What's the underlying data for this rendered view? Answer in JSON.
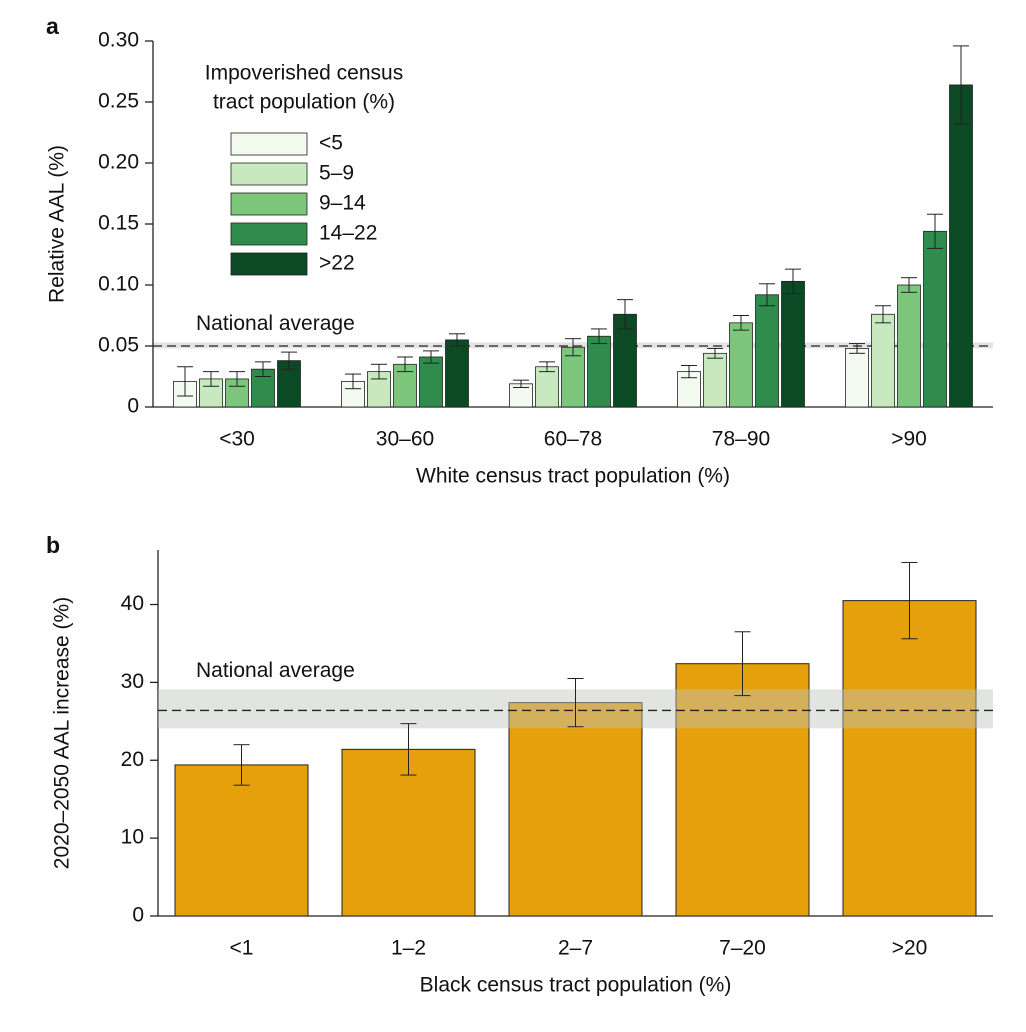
{
  "chart_data": [
    {
      "type": "grouped_bar",
      "panel": "a",
      "x_label": "White census tract population (%)",
      "y_label": "Relative AAL (%)",
      "categories": [
        "<30",
        "30–60",
        "60–78",
        "78–90",
        ">90"
      ],
      "legend_title_lines": [
        "Impoverished census",
        "tract population (%)"
      ],
      "series": [
        {
          "name": "<5",
          "color": "#f3faf0",
          "values": [
            0.021,
            0.021,
            0.019,
            0.029,
            0.048
          ],
          "errors": [
            0.012,
            0.006,
            0.003,
            0.005,
            0.004
          ]
        },
        {
          "name": "5–9",
          "color": "#c8e9c0",
          "values": [
            0.023,
            0.029,
            0.033,
            0.044,
            0.076
          ],
          "errors": [
            0.006,
            0.006,
            0.004,
            0.004,
            0.007
          ]
        },
        {
          "name": "9–14",
          "color": "#7bc67a",
          "values": [
            0.023,
            0.035,
            0.049,
            0.069,
            0.1
          ],
          "errors": [
            0.006,
            0.006,
            0.007,
            0.006,
            0.006
          ]
        },
        {
          "name": "14–22",
          "color": "#2f8c4d",
          "values": [
            0.031,
            0.041,
            0.058,
            0.092,
            0.144
          ],
          "errors": [
            0.006,
            0.005,
            0.006,
            0.009,
            0.014
          ]
        },
        {
          "name": ">22",
          "color": "#0b4a24",
          "values": [
            0.038,
            0.055,
            0.076,
            0.103,
            0.264
          ],
          "errors": [
            0.007,
            0.005,
            0.012,
            0.01,
            0.032
          ]
        }
      ],
      "national_average": {
        "label": "National average",
        "value": 0.05,
        "band": [
          0.048,
          0.053
        ]
      },
      "ylim": [
        0,
        0.3
      ],
      "yticks": [
        0,
        0.05,
        {
          "value": 0.1,
          "label": "0.10"
        },
        0.15,
        {
          "value": 0.2,
          "label": "0.20"
        },
        0.25,
        {
          "value": 0.3,
          "label": "0.30"
        }
      ]
    },
    {
      "type": "bar",
      "panel": "b",
      "x_label": "Black census tract population (%)",
      "y_label": "2020–2050 AAL increase (%)",
      "categories": [
        "<1",
        "1–2",
        "2–7",
        "7–20",
        ">20"
      ],
      "color": "#e6a00b",
      "values": [
        19.4,
        21.4,
        27.4,
        32.4,
        40.5
      ],
      "errors": [
        2.6,
        3.3,
        3.1,
        4.1,
        4.9
      ],
      "national_average": {
        "label": "National average",
        "value": 26.4,
        "band": [
          24.1,
          29.1
        ]
      },
      "ylim": [
        0,
        47
      ],
      "yticks": [
        0,
        10,
        20,
        30,
        40
      ]
    }
  ]
}
